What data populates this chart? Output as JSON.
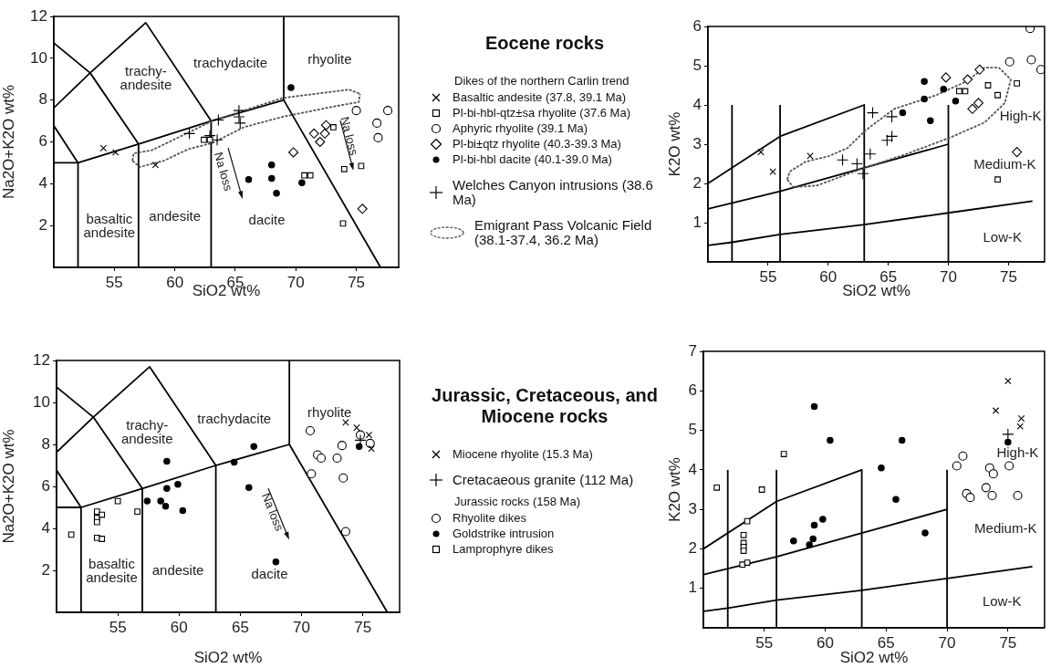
{
  "chart_data": [
    {
      "type": "scatter",
      "xlabel": "SiO2 wt%",
      "ylabel": "Na2O+K2O wt%",
      "xlim": [
        50,
        78.5
      ],
      "ylim": [
        0,
        12
      ],
      "xticks": [
        55,
        60,
        65,
        70,
        75
      ],
      "yticks": [
        2,
        4,
        6,
        8,
        10,
        12
      ],
      "legend": "right",
      "legend_title": "Eocene rocks",
      "series": [
        {
          "name": "Basaltic andesite (37.8, 39.1 Ma)",
          "marker": "x",
          "color": "#000000",
          "x": [
            54.1,
            55.1,
            58.4
          ],
          "values": [
            5.7,
            5.5,
            4.9
          ]
        },
        {
          "name": "Pl-bi-hbl-qtz±sa rhyolite (37.6 Ma)",
          "marker": "square",
          "color": "#000000",
          "x": [
            62.4,
            62.9,
            70.7,
            71.2,
            74.0,
            75.4,
            73.9,
            73.1
          ],
          "values": [
            6.1,
            6.1,
            4.4,
            4.4,
            4.7,
            4.85,
            2.1,
            6.7
          ]
        },
        {
          "name": "Aphyric rhyolite (39.1 Ma)",
          "marker": "circle",
          "color": "#000000",
          "x": [
            75.0,
            77.6,
            76.7,
            76.8
          ],
          "values": [
            7.5,
            7.5,
            6.9,
            6.2
          ]
        },
        {
          "name": "Pl-bi±qtz rhyolite (40.3-39.3 Ma)",
          "marker": "diamond",
          "color": "#000000",
          "x": [
            69.8,
            71.5,
            72.0,
            72.4,
            72.5,
            75.5
          ],
          "values": [
            5.5,
            6.4,
            6.0,
            6.4,
            6.8,
            2.8
          ]
        },
        {
          "name": "Pl-bi-hbl dacite (40.1-39.0 Ma)",
          "marker": "dot",
          "color": "#000000",
          "x": [
            69.6,
            66.1,
            68.0,
            68.0,
            68.4,
            70.5
          ],
          "values": [
            8.6,
            4.2,
            4.9,
            4.25,
            3.55,
            4.05
          ]
        },
        {
          "name": "Welches Canyon intrusions (38.6 Ma)",
          "marker": "cross",
          "color": "#000000",
          "x": [
            61.2,
            63.6,
            65.3,
            65.3,
            65.4,
            62.9,
            63.5
          ],
          "values": [
            6.4,
            7.05,
            7.5,
            7.2,
            6.9,
            6.3,
            6.1
          ]
        },
        {
          "name": "Emigrant Pass Volcanic Field (38.1-37.4, 36.2 Ma)",
          "type": "line",
          "line_style": "dotted",
          "color": "#555555",
          "x": [
            56.5,
            57.1,
            59.1,
            61.1,
            63.1,
            65.7,
            68.9,
            73.2,
            75.2,
            75.3
          ],
          "values": [
            5.1,
            4.8,
            5.1,
            5.65,
            5.95,
            6.7,
            7.2,
            7.7,
            7.9,
            8.3
          ]
        },
        {
          "type": "line",
          "line_style": "dotted",
          "color": "#555555",
          "x": [
            56.5,
            56.6,
            58.1,
            60.6,
            63.1,
            65.7,
            68.9,
            74.4,
            75.3
          ],
          "values": [
            5.1,
            5.45,
            5.6,
            6.3,
            7.0,
            7.5,
            8.1,
            8.5,
            8.3
          ]
        },
        {
          "type": "line",
          "color": "#000000",
          "x": [
            50,
            52,
            57,
            63,
            69,
            77
          ],
          "values": [
            5,
            5,
            5.9,
            7,
            8,
            0
          ]
        },
        {
          "type": "line",
          "color": "#000000",
          "x": [
            52,
            52,
            50
          ],
          "values": [
            0,
            5,
            6.77
          ]
        },
        {
          "type": "line",
          "color": "#000000",
          "x": [
            57,
            57,
            53,
            50
          ],
          "values": [
            0,
            5.9,
            9.3,
            10.73
          ]
        },
        {
          "type": "line",
          "color": "#000000",
          "x": [
            63,
            63,
            57.6,
            53,
            50
          ],
          "values": [
            0,
            7,
            11.7,
            9.3,
            7.63
          ]
        },
        {
          "type": "line",
          "color": "#000000",
          "x": [
            69,
            69
          ],
          "values": [
            8,
            12
          ]
        }
      ],
      "annotations": [
        "trachy-\nandesite",
        "trachydacite",
        "rhyolite",
        "basaltic\nandesite",
        "andesite",
        "dacite",
        "Na loss",
        "Na loss",
        "Dikes of the northern Carlin trend"
      ]
    },
    {
      "type": "scatter",
      "xlabel": "SiO2 wt%",
      "ylabel": "K2O wt%",
      "xlim": [
        50,
        78
      ],
      "ylim": [
        0,
        6
      ],
      "xticks": [
        55,
        60,
        65,
        70,
        75
      ],
      "yticks": [
        1,
        2,
        3,
        4,
        5,
        6
      ],
      "series": [
        {
          "marker": "x",
          "color": "#000000",
          "x": [
            54.4,
            55.4,
            58.5
          ],
          "values": [
            2.8,
            2.3,
            2.7
          ]
        },
        {
          "marker": "square",
          "color": "#000000",
          "x": [
            70.9,
            71.4,
            73.3,
            74.1,
            75.7,
            74.1
          ],
          "values": [
            4.35,
            4.35,
            4.5,
            4.25,
            4.55,
            2.1
          ]
        },
        {
          "marker": "circle",
          "color": "#000000",
          "x": [
            76.8,
            75.1,
            76.9,
            77.7
          ],
          "values": [
            5.95,
            5.1,
            5.15,
            4.9
          ]
        },
        {
          "marker": "diamond",
          "color": "#000000",
          "x": [
            69.8,
            71.6,
            72.6,
            72.0,
            72.5,
            75.7
          ],
          "values": [
            4.7,
            4.65,
            4.9,
            3.9,
            4.05,
            2.8
          ]
        },
        {
          "marker": "dot",
          "color": "#000000",
          "x": [
            68.0,
            68.0,
            69.6,
            70.6,
            68.5,
            66.2
          ],
          "values": [
            4.6,
            4.15,
            4.4,
            4.1,
            3.6,
            3.8
          ]
        },
        {
          "marker": "cross",
          "color": "#000000",
          "x": [
            61.2,
            62.4,
            62.9,
            63.5,
            63.7,
            65.3,
            64.9,
            65.3
          ],
          "values": [
            2.6,
            2.5,
            2.25,
            2.75,
            3.8,
            3.7,
            3.1,
            3.2
          ]
        },
        {
          "type": "line",
          "line_style": "dotted",
          "color": "#555555",
          "x": [
            56.6,
            57.1,
            59.1,
            62.6,
            66.5,
            70.0,
            73.0,
            74.7,
            75.2
          ],
          "values": [
            2.1,
            1.9,
            1.95,
            2.35,
            2.75,
            3.15,
            3.55,
            4.05,
            4.65
          ]
        },
        {
          "type": "line",
          "line_style": "dotted",
          "color": "#555555",
          "x": [
            56.6,
            56.8,
            58.1,
            60.1,
            61.6,
            63.1,
            65.5,
            69.0,
            71.5,
            73.0,
            74.2,
            75.2
          ],
          "values": [
            2.1,
            2.3,
            2.55,
            2.7,
            2.9,
            3.35,
            3.9,
            4.25,
            4.6,
            4.95,
            4.95,
            4.65
          ]
        },
        {
          "type": "line",
          "color": "#000000",
          "x": [
            50,
            56,
            63,
            63
          ],
          "values": [
            2,
            3.2,
            4,
            0
          ]
        },
        {
          "type": "line",
          "color": "#000000",
          "x": [
            50,
            56,
            63,
            70
          ],
          "values": [
            1.35,
            1.8,
            2.4,
            3
          ]
        },
        {
          "type": "line",
          "color": "#000000",
          "x": [
            50,
            52,
            56,
            63,
            70,
            77
          ],
          "values": [
            0.42,
            0.5,
            0.7,
            0.95,
            1.25,
            1.55
          ]
        },
        {
          "type": "line",
          "color": "#000000",
          "x": [
            52,
            52
          ],
          "values": [
            0,
            4
          ]
        },
        {
          "type": "line",
          "color": "#000000",
          "x": [
            56,
            56
          ],
          "values": [
            0,
            4
          ]
        },
        {
          "type": "line",
          "color": "#000000",
          "x": [
            70,
            70
          ],
          "values": [
            0,
            4
          ]
        }
      ],
      "annotations": [
        "High-K",
        "Medium-K",
        "Low-K"
      ]
    },
    {
      "type": "scatter",
      "xlabel": "SiO2 wt%",
      "ylabel": "Na2O+K2O wt%",
      "xlim": [
        50,
        78
      ],
      "ylim": [
        0,
        12
      ],
      "xticks": [
        55,
        60,
        65,
        70,
        75
      ],
      "yticks": [
        2,
        4,
        6,
        8,
        10,
        12
      ],
      "legend": "right",
      "legend_title": "Jurassic, Cretaceous, and Miocene rocks",
      "series": [
        {
          "name": "Miocene rhyolite (15.3 Ma)",
          "marker": "x",
          "color": "#000000",
          "x": [
            73.6,
            74.5,
            75.5,
            75.7
          ],
          "values": [
            9.05,
            8.8,
            8.45,
            7.8
          ]
        },
        {
          "name": "Cretacaeous granite (112 Ma)",
          "marker": "cross",
          "color": "#000000",
          "x": [
            74.8
          ],
          "values": [
            8.2
          ]
        },
        {
          "name": "Rhyolite dikes",
          "marker": "circle",
          "color": "#000000",
          "x": [
            70.7,
            71.3,
            71.6,
            72.9,
            73.3,
            70.8,
            73.4,
            73.6,
            74.8,
            75.6
          ],
          "values": [
            8.65,
            7.5,
            7.35,
            7.35,
            7.95,
            6.6,
            6.4,
            3.85,
            8.45,
            8.05
          ]
        },
        {
          "name": "Goldstrike intrusion",
          "marker": "dot",
          "color": "#000000",
          "x": [
            59.0,
            57.4,
            58.5,
            58.9,
            59.0,
            59.9,
            60.3,
            64.5,
            66.1,
            65.7,
            67.9,
            74.7
          ],
          "values": [
            7.2,
            5.3,
            5.3,
            5.05,
            5.9,
            6.1,
            4.85,
            7.15,
            7.9,
            5.95,
            2.4,
            7.9
          ]
        },
        {
          "name": "Lamprophyre dikes",
          "marker": "square",
          "color": "#000000",
          "x": [
            51.2,
            53.3,
            53.3,
            53.3,
            53.7,
            55.0,
            56.6,
            53.3,
            53.7
          ],
          "values": [
            3.7,
            4.8,
            4.5,
            4.3,
            4.65,
            5.3,
            4.8,
            3.55,
            3.5
          ]
        },
        {
          "type": "line",
          "color": "#000000",
          "x": [
            50,
            52,
            57,
            63,
            69,
            77
          ],
          "values": [
            5,
            5,
            5.9,
            7,
            8,
            0
          ]
        },
        {
          "type": "line",
          "color": "#000000",
          "x": [
            52,
            52,
            50
          ],
          "values": [
            0,
            5,
            6.77
          ]
        },
        {
          "type": "line",
          "color": "#000000",
          "x": [
            57,
            57,
            53,
            50
          ],
          "values": [
            0,
            5.9,
            9.3,
            10.73
          ]
        },
        {
          "type": "line",
          "color": "#000000",
          "x": [
            63,
            63,
            57.6,
            53,
            50
          ],
          "values": [
            0,
            7,
            11.7,
            9.3,
            7.63
          ]
        },
        {
          "type": "line",
          "color": "#000000",
          "x": [
            69,
            69
          ],
          "values": [
            8,
            12
          ]
        }
      ],
      "annotations": [
        "trachy-\nandesite",
        "trachydacite",
        "rhyolite",
        "basaltic\nandesite",
        "andesite",
        "dacite",
        "Na loss",
        "Jurassic rocks (158 Ma)"
      ]
    },
    {
      "type": "scatter",
      "xlabel": "SiO2 wt%",
      "ylabel": "K2O wt%",
      "xlim": [
        50,
        78
      ],
      "ylim": [
        0,
        7
      ],
      "xticks": [
        55,
        60,
        65,
        70,
        75
      ],
      "yticks": [
        1,
        2,
        3,
        4,
        5,
        6,
        7
      ],
      "series": [
        {
          "marker": "x",
          "color": "#000000",
          "x": [
            75.0,
            74.0,
            76.1,
            76.0
          ],
          "values": [
            6.25,
            5.5,
            5.3,
            5.1
          ]
        },
        {
          "marker": "cross",
          "color": "#000000",
          "x": [
            75.0
          ],
          "values": [
            4.9
          ]
        },
        {
          "marker": "circle",
          "color": "#000000",
          "x": [
            71.3,
            70.8,
            71.6,
            71.9,
            73.2,
            73.7,
            73.5,
            73.8,
            75.1,
            75.8
          ],
          "values": [
            4.35,
            4.1,
            3.4,
            3.3,
            3.55,
            3.35,
            4.05,
            3.9,
            4.1,
            3.35
          ]
        },
        {
          "marker": "dot",
          "color": "#000000",
          "x": [
            59.1,
            60.4,
            66.3,
            64.6,
            65.8,
            68.2,
            57.4,
            58.7,
            59.0,
            59.1,
            59.8,
            75.0
          ],
          "values": [
            5.6,
            4.75,
            4.75,
            4.05,
            3.25,
            2.4,
            2.2,
            2.1,
            2.25,
            2.6,
            2.75,
            4.7
          ]
        },
        {
          "marker": "square",
          "color": "#000000",
          "x": [
            51.1,
            56.6,
            54.8,
            53.6,
            53.3,
            53.3,
            53.3,
            53.3,
            53.2,
            53.6
          ],
          "values": [
            3.55,
            4.4,
            3.5,
            2.7,
            2.35,
            2.15,
            2.05,
            1.95,
            1.6,
            1.65
          ]
        },
        {
          "type": "line",
          "color": "#000000",
          "x": [
            50,
            56,
            63,
            63
          ],
          "values": [
            2,
            3.2,
            4,
            0
          ]
        },
        {
          "type": "line",
          "color": "#000000",
          "x": [
            50,
            56,
            63,
            70
          ],
          "values": [
            1.35,
            1.8,
            2.4,
            3
          ]
        },
        {
          "type": "line",
          "color": "#000000",
          "x": [
            50,
            52,
            56,
            63,
            70,
            77
          ],
          "values": [
            0.42,
            0.5,
            0.7,
            0.95,
            1.25,
            1.55
          ]
        },
        {
          "type": "line",
          "color": "#000000",
          "x": [
            52,
            52
          ],
          "values": [
            0,
            4
          ]
        },
        {
          "type": "line",
          "color": "#000000",
          "x": [
            56,
            56
          ],
          "values": [
            0,
            4
          ]
        },
        {
          "type": "line",
          "color": "#000000",
          "x": [
            70,
            70
          ],
          "values": [
            0,
            4
          ]
        }
      ],
      "annotations": [
        "High-K",
        "Medium-K",
        "Low-K"
      ]
    }
  ]
}
